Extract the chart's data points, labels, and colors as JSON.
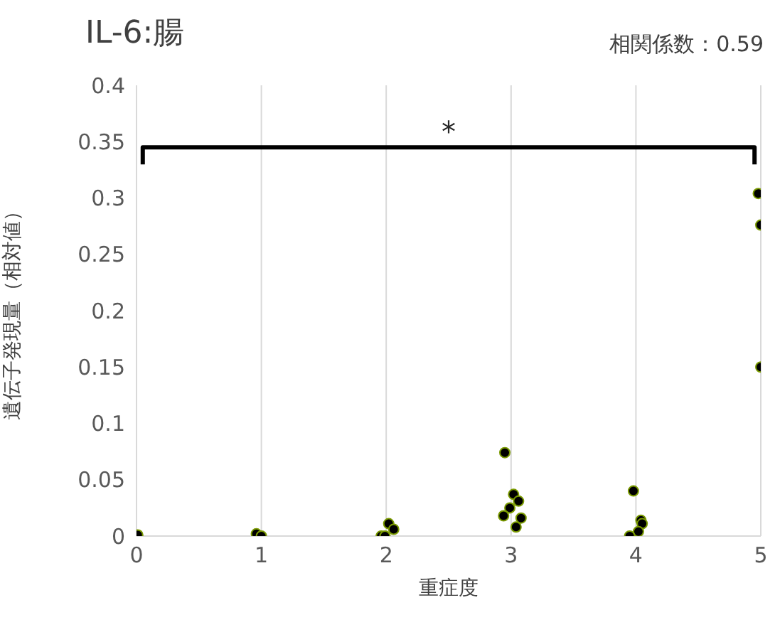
{
  "chart_data": {
    "type": "scatter",
    "title": "IL-6:腸",
    "xlabel": "重症度",
    "ylabel": "遺伝子発現量（相対値）",
    "annotations": [
      "相関係数：0.59",
      "*"
    ],
    "series": [
      {
        "color": "#000000",
        "x": [
          0.01,
          0.96,
          1.0,
          1.96,
          1.99,
          2.02,
          2.06,
          2.95,
          3.02,
          3.06,
          2.99,
          2.94,
          3.08,
          3.04,
          3.98,
          4.04,
          4.05,
          4.02,
          3.95,
          4.98,
          5.0,
          5.0
        ],
        "values": [
          0.001,
          0.002,
          0.0,
          0.0,
          0.0,
          0.011,
          0.006,
          0.074,
          0.037,
          0.031,
          0.025,
          0.018,
          0.016,
          0.008,
          0.04,
          0.014,
          0.011,
          0.004,
          0.0,
          0.304,
          0.276,
          0.15
        ]
      }
    ],
    "xlim": [
      0,
      5
    ],
    "xticks": [
      0,
      1,
      2,
      3,
      4,
      5
    ],
    "ylim": [
      0,
      0.4
    ],
    "yticks": [
      0,
      0.05,
      0.1,
      0.15,
      0.2,
      0.25,
      0.3,
      0.35,
      0.4
    ],
    "grid": "x",
    "marker": "circle",
    "legend": false
  }
}
